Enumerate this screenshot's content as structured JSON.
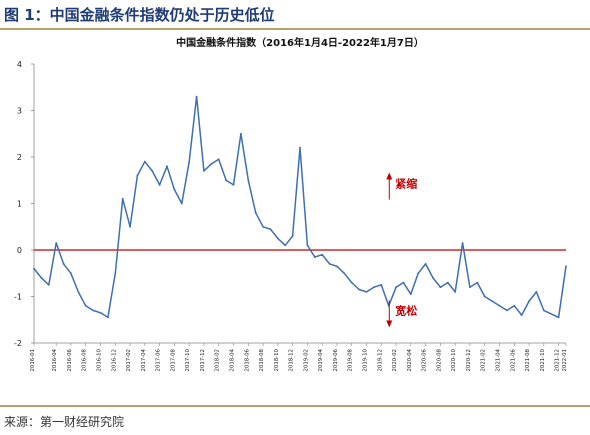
{
  "figure": {
    "title": "图 1：中国金融条件指数仍处于历史低位",
    "source": "来源：第一财经研究院"
  },
  "chart_data": {
    "type": "line",
    "title": "中国金融条件指数（2016年1月4日-2022年1月7日）",
    "xlabel": "",
    "ylabel": "",
    "ylim": [
      -2,
      4
    ],
    "yticks": [
      "-2",
      "-1",
      "0",
      "1",
      "2",
      "3",
      "4"
    ],
    "x_ticks": [
      "2016-01",
      "2016-04",
      "2016-06",
      "2016-08",
      "2016-10",
      "2016-12",
      "2017-02",
      "2017-04",
      "2017-06",
      "2017-08",
      "2017-10",
      "2017-12",
      "2018-02",
      "2018-04",
      "2018-06",
      "2018-08",
      "2018-10",
      "2018-12",
      "2019-02",
      "2019-04",
      "2019-06",
      "2019-08",
      "2019-10",
      "2019-12",
      "2020-02",
      "2020-04",
      "2020-06",
      "2020-08",
      "2020-10",
      "2020-12",
      "2021-02",
      "2021-04",
      "2021-06",
      "2021-08",
      "2021-10",
      "2021-12",
      "2022-01"
    ],
    "reference_line": {
      "y": 0,
      "color": "#c00000"
    },
    "line_color": "#3e6fb0",
    "annotations": [
      {
        "text": "紧缩",
        "direction": "up",
        "y": 1.3,
        "x": "2019-12",
        "color": "#c00000"
      },
      {
        "text": "宽松",
        "direction": "down",
        "y": -1.3,
        "x": "2019-12",
        "color": "#c00000"
      }
    ],
    "series": [
      {
        "x": [
          "2016-01",
          "2016-02",
          "2016-03",
          "2016-04",
          "2016-05",
          "2016-06",
          "2016-07",
          "2016-08",
          "2016-09",
          "2016-10",
          "2016-11",
          "2016-12",
          "2017-01",
          "2017-02",
          "2017-03",
          "2017-04",
          "2017-05",
          "2017-06",
          "2017-07",
          "2017-08",
          "2017-09",
          "2017-10",
          "2017-11",
          "2017-12",
          "2018-01",
          "2018-02",
          "2018-03",
          "2018-04",
          "2018-05",
          "2018-06",
          "2018-07",
          "2018-08",
          "2018-09",
          "2018-10",
          "2018-11",
          "2018-12",
          "2019-01",
          "2019-02",
          "2019-03",
          "2019-04",
          "2019-05",
          "2019-06",
          "2019-07",
          "2019-08",
          "2019-09",
          "2019-10",
          "2019-11",
          "2019-12",
          "2020-01",
          "2020-02",
          "2020-03",
          "2020-04",
          "2020-05",
          "2020-06",
          "2020-07",
          "2020-08",
          "2020-09",
          "2020-10",
          "2020-11",
          "2020-12",
          "2021-01",
          "2021-02",
          "2021-03",
          "2021-04",
          "2021-05",
          "2021-06",
          "2021-07",
          "2021-08",
          "2021-09",
          "2021-10",
          "2021-12",
          "2022-01"
        ],
        "values": [
          -0.4,
          -0.6,
          -0.75,
          0.15,
          -0.3,
          -0.5,
          -0.9,
          -1.2,
          -1.3,
          -1.35,
          -1.45,
          -0.5,
          1.1,
          0.5,
          1.6,
          1.9,
          1.7,
          1.4,
          1.8,
          1.3,
          1.0,
          1.9,
          3.3,
          1.7,
          1.85,
          1.95,
          1.5,
          1.4,
          2.5,
          1.5,
          0.8,
          0.5,
          0.45,
          0.25,
          0.1,
          0.3,
          2.2,
          0.1,
          -0.15,
          -0.1,
          -0.3,
          -0.35,
          -0.5,
          -0.7,
          -0.85,
          -0.9,
          -0.8,
          -0.75,
          -1.2,
          -0.8,
          -0.7,
          -0.95,
          -0.5,
          -0.3,
          -0.6,
          -0.8,
          -0.7,
          -0.9,
          0.15,
          -0.8,
          -0.7,
          -1.0,
          -1.1,
          -1.2,
          -1.3,
          -1.2,
          -1.4,
          -1.1,
          -0.9,
          -1.3,
          -1.45,
          -0.35
        ]
      }
    ]
  }
}
